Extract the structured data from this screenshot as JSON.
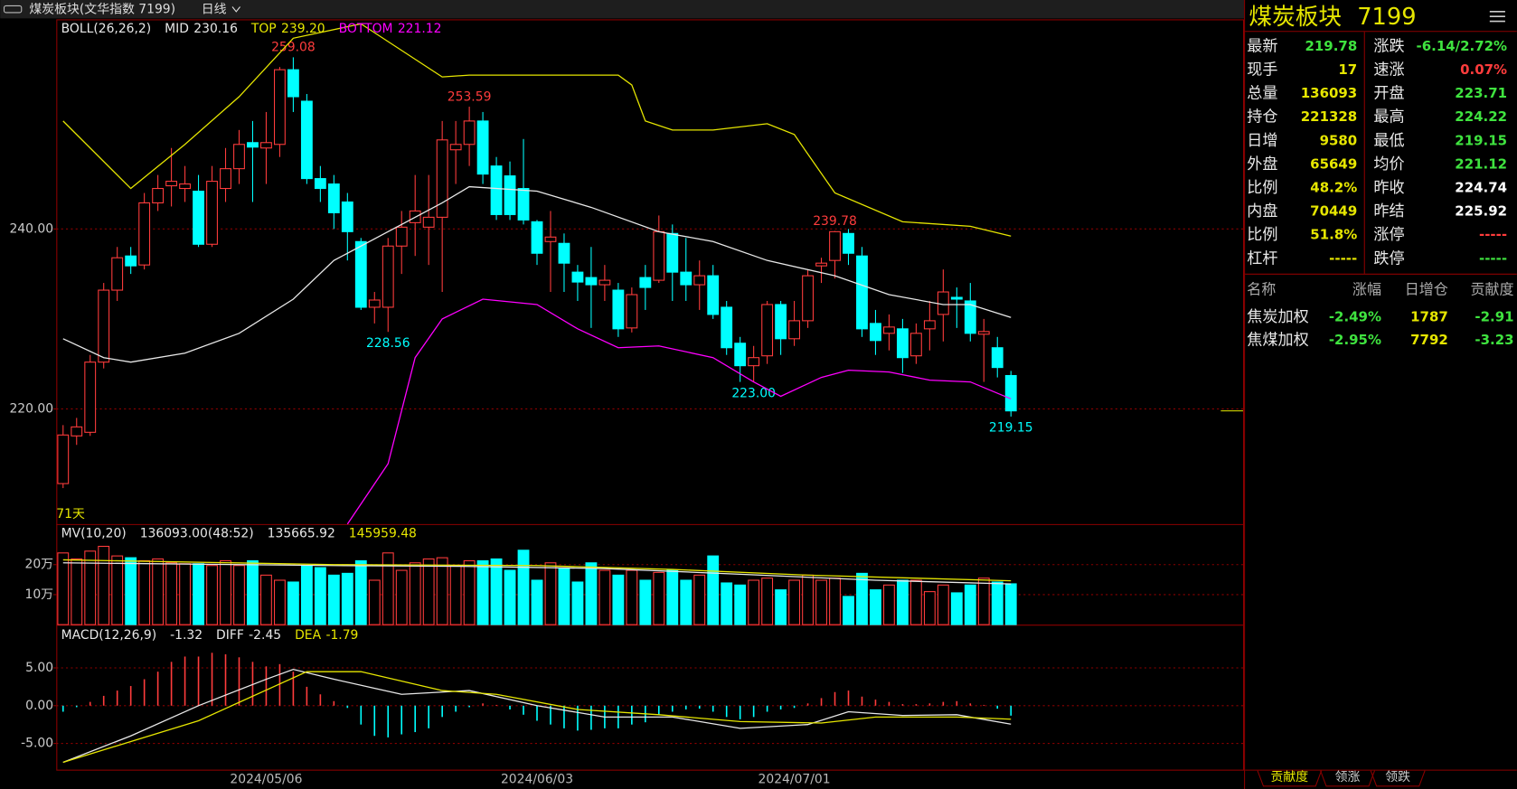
{
  "window": {
    "title": "煤炭板块(文华指数 7199)",
    "period": "日线"
  },
  "chart_data": [
    {
      "type": "candlestick",
      "indicator": "BOLL(26,26,2)",
      "day_count": "71天",
      "categories": [
        null,
        null,
        null,
        null,
        null,
        null,
        null,
        null,
        null,
        null,
        null,
        null,
        null,
        null,
        null,
        "2024/05/06",
        null,
        null,
        null,
        null,
        null,
        null,
        null,
        null,
        null,
        null,
        null,
        null,
        null,
        null,
        null,
        null,
        null,
        null,
        null,
        "2024/06/03",
        null,
        null,
        null,
        null,
        null,
        null,
        null,
        null,
        null,
        null,
        null,
        null,
        null,
        null,
        null,
        null,
        null,
        null,
        "2024/07/01",
        null,
        null,
        null,
        null,
        null,
        null,
        null,
        null,
        null,
        null,
        null,
        null,
        null,
        null,
        null,
        null
      ],
      "open": [
        211.7,
        217,
        217.4,
        225.2,
        233.2,
        237,
        236,
        242.9,
        244.8,
        244.5,
        244.2,
        238.3,
        244.5,
        246.7,
        249.6,
        249,
        249.4,
        257.7,
        254.2,
        245.6,
        245,
        243,
        238.6,
        231.3,
        231.3,
        238.1,
        240.7,
        240.2,
        241.3,
        248.8,
        249.4,
        252,
        247,
        245.9,
        244.5,
        240.8,
        238.6,
        238.4,
        235.2,
        234.6,
        233.8,
        233.2,
        229,
        234.6,
        234.3,
        239.5,
        235.2,
        233.8,
        234.8,
        231.3,
        227.3,
        224.8,
        225.9,
        231.6,
        227.8,
        229.8,
        235.9,
        236.5,
        239.5,
        237,
        229.5,
        228.4,
        228.9,
        225.9,
        228.9,
        230.5,
        232.4,
        232,
        228.3,
        226.8,
        223.71
      ],
      "high": [
        218.2,
        219,
        226,
        234,
        238,
        238,
        244,
        246,
        249,
        247,
        246,
        247,
        249,
        251,
        252,
        253,
        258,
        259.08,
        255,
        247,
        246,
        244,
        239,
        233,
        239,
        242,
        246,
        246,
        252,
        252,
        253.59,
        253,
        248,
        247.5,
        250,
        241,
        242,
        239.5,
        236,
        238,
        236,
        234,
        233.5,
        236,
        241.5,
        240.5,
        239,
        236.5,
        236,
        232,
        228,
        227,
        232,
        232,
        232,
        235.5,
        236.8,
        239.78,
        240,
        238,
        231,
        230.5,
        230,
        229.5,
        232,
        235.5,
        233.5,
        234,
        230,
        228,
        224.22
      ],
      "low": [
        211.2,
        216,
        217,
        224.5,
        232,
        235,
        235.5,
        242,
        242.5,
        243,
        238,
        238,
        243,
        245,
        243,
        245,
        248,
        253,
        245,
        243,
        240,
        236.5,
        231,
        229.5,
        228.56,
        235,
        237,
        236,
        233,
        245,
        247,
        245,
        241,
        241,
        240.5,
        236,
        233,
        233,
        232,
        229,
        232,
        228,
        228.5,
        231,
        234,
        232,
        232,
        231,
        230,
        226,
        223,
        223,
        225,
        226,
        227,
        229,
        234,
        234.5,
        236,
        228,
        226,
        226.5,
        224,
        225,
        226.5,
        227.5,
        229,
        227.5,
        223,
        223.5,
        219.15
      ],
      "close": [
        217.1,
        218,
        225.2,
        233.2,
        236.8,
        235.9,
        242.9,
        244.5,
        245.3,
        245,
        238.3,
        245.3,
        246.7,
        249.4,
        249.1,
        249.6,
        257.7,
        254.7,
        245.6,
        244.5,
        241.8,
        239.7,
        231.3,
        232.1,
        238.1,
        240.2,
        242,
        241.3,
        249.9,
        249.4,
        252,
        246.1,
        241.6,
        241.6,
        241,
        237.3,
        239.1,
        236.2,
        234.1,
        233.8,
        234.3,
        228.9,
        232.7,
        233.5,
        239.7,
        235.2,
        233.8,
        234.8,
        230.5,
        226.8,
        224.8,
        225.7,
        231.6,
        227.8,
        229.8,
        234.8,
        236.2,
        239.7,
        237.3,
        228.9,
        227.6,
        229.1,
        225.7,
        228.4,
        229.8,
        233,
        232.2,
        228.4,
        228.6,
        224.6,
        219.78
      ],
      "up_color": "#ff3c3c",
      "down_color": "#00ffff",
      "ylim": [
        207.2,
        263.3
      ],
      "yticks": [
        {
          "value": 220,
          "label": "220.00"
        },
        {
          "value": 240,
          "label": "240.00"
        }
      ],
      "grid": true,
      "annotations": [
        {
          "candle": 17,
          "at": "high",
          "text": "259.08"
        },
        {
          "candle": 30,
          "at": "high",
          "text": "253.59"
        },
        {
          "candle": 24,
          "at": "low",
          "text": "228.56"
        },
        {
          "candle": 51,
          "at": "low",
          "text": "223.00"
        },
        {
          "candle": 57,
          "at": "high",
          "text": "239.78"
        },
        {
          "candle": 70,
          "at": "low",
          "text": "219.15"
        }
      ],
      "series": [
        {
          "name": "MID",
          "readout": "230.16",
          "color": "#e8e8e8",
          "x": [
            0,
            3,
            5,
            9,
            13,
            17,
            20,
            24,
            28,
            30,
            35,
            39,
            44,
            48,
            52,
            57,
            61,
            65,
            67,
            70
          ],
          "values": [
            227.8,
            225.7,
            225.2,
            226.2,
            228.4,
            232.2,
            236.5,
            239.7,
            242.9,
            244.7,
            244.2,
            242.4,
            239.7,
            238.6,
            236.5,
            234.8,
            232.7,
            231.6,
            231.6,
            230.16
          ]
        },
        {
          "name": "TOP",
          "readout": "239.20",
          "color": "#e6e600",
          "x": [
            0,
            5,
            9,
            13,
            17,
            22,
            28,
            30,
            41,
            42,
            43,
            45,
            48,
            52,
            54,
            57,
            62,
            67,
            70
          ],
          "values": [
            252,
            244.5,
            249.4,
            254.7,
            261.2,
            262.8,
            256.9,
            257.1,
            257.1,
            256,
            252,
            251,
            251,
            251.7,
            250.5,
            244,
            240.8,
            240.3,
            239.2
          ]
        },
        {
          "name": "BOTTOM",
          "readout": "221.12",
          "color": "#ff00ff",
          "x": [
            21,
            24,
            26,
            28,
            31,
            35,
            38,
            41,
            44,
            48,
            51,
            53,
            56,
            58,
            61,
            64,
            67,
            70
          ],
          "values": [
            207.2,
            213.9,
            225.7,
            230,
            232.2,
            231.6,
            228.9,
            226.8,
            227,
            225.7,
            223,
            221.4,
            223.5,
            224.3,
            224.1,
            223.2,
            223,
            221.12
          ]
        }
      ]
    },
    {
      "type": "volume",
      "indicator": "MV(10,20)",
      "readout": "136093.00(48:52)",
      "values": [
        23.9,
        21.9,
        24.5,
        26.1,
        22.9,
        22.3,
        21.3,
        21.9,
        20.6,
        20.3,
        20.3,
        19.7,
        21.3,
        19.7,
        21.3,
        16.5,
        14.8,
        14.2,
        19.7,
        19,
        16.5,
        17.1,
        21.3,
        14.8,
        23.9,
        18.1,
        20.6,
        21.9,
        22.3,
        19.7,
        21.3,
        21.3,
        21.9,
        18.1,
        24.8,
        14.8,
        20.6,
        18.7,
        14.2,
        20.6,
        18.1,
        16.5,
        18.1,
        14.8,
        17.4,
        18.1,
        14.8,
        16.5,
        22.9,
        13.9,
        13.2,
        14.8,
        15.5,
        11.6,
        14.8,
        16.5,
        14.8,
        15.5,
        9.4,
        17.1,
        11.6,
        13.2,
        14.8,
        14.8,
        11,
        13.2,
        10.6,
        13.2,
        15.5,
        14.2,
        13.6093
      ],
      "ylim": [
        0,
        33.2
      ],
      "yticks": [
        {
          "value": 10,
          "label": "10万"
        },
        {
          "value": 20,
          "label": "20万"
        }
      ],
      "grid": true,
      "series": [
        {
          "readout": "135665.92",
          "color": "#e8e8e8",
          "x": [
            0,
            20,
            30,
            40,
            50,
            60,
            70
          ],
          "values": [
            20.6,
            19.7,
            19.4,
            18.7,
            16.8,
            14.8,
            13.57
          ]
        },
        {
          "readout": "145959.48",
          "color": "#e6e600",
          "x": [
            0,
            20,
            35,
            45,
            55,
            70
          ],
          "values": [
            21.6,
            20,
            19.7,
            18.4,
            16.5,
            14.6
          ]
        }
      ]
    },
    {
      "type": "macd",
      "indicator": "MACD(12,26,9)",
      "readout": "-1.32",
      "values": [
        -0.8,
        -0.2,
        0.5,
        1.3,
        2,
        2.6,
        3.5,
        4.5,
        5.8,
        6.5,
        6.5,
        7,
        6.8,
        6.4,
        5.8,
        5.2,
        5.5,
        4.5,
        2.5,
        1.5,
        0.6,
        -0.3,
        -2.5,
        -4,
        -4.2,
        -3.8,
        -3.5,
        -3,
        -1.5,
        -0.8,
        -0.2,
        0.3,
        0.1,
        -0.5,
        -1.2,
        -2,
        -2.5,
        -3,
        -3.3,
        -3.2,
        -3,
        -3,
        -2.5,
        -2.2,
        -1.2,
        -0.8,
        -0.5,
        -0.4,
        -0.8,
        -1.5,
        -1.8,
        -1.5,
        -0.8,
        -0.5,
        -0.3,
        0.3,
        1,
        1.8,
        2,
        1.2,
        0.8,
        0.5,
        0.2,
        0.2,
        0.3,
        0.5,
        0.6,
        0.3,
        0.1,
        -0.4,
        -1.32
      ],
      "up_color": "#ff3c3c",
      "down_color": "#00ffff",
      "ylim": [
        -8.6,
        10.6
      ],
      "yticks": [
        {
          "value": -5,
          "label": "-5.00"
        },
        {
          "value": 0,
          "label": "0.00"
        },
        {
          "value": 5,
          "label": "5.00"
        }
      ],
      "grid": true,
      "series": [
        {
          "name": "DIFF",
          "readout": "-2.45",
          "color": "#e8e8e8",
          "x": [
            0,
            5,
            10,
            15,
            17,
            20,
            25,
            30,
            35,
            40,
            45,
            50,
            55,
            58,
            62,
            66,
            70
          ],
          "values": [
            -7.5,
            -4,
            0,
            3.5,
            4.8,
            3.5,
            1.5,
            2,
            0,
            -1.5,
            -1.5,
            -3,
            -2.5,
            -0.8,
            -1.3,
            -1.2,
            -2.45
          ]
        },
        {
          "name": "DEA",
          "readout": "-1.79",
          "color": "#e6e600",
          "x": [
            0,
            10,
            18,
            22,
            28,
            32,
            38,
            44,
            50,
            56,
            60,
            66,
            70
          ],
          "values": [
            -7.5,
            -2,
            4.5,
            4.5,
            2,
            1.5,
            -0.5,
            -1.2,
            -2.1,
            -2.3,
            -1.5,
            -1.5,
            -1.79
          ]
        }
      ]
    }
  ],
  "quote": {
    "name": "煤炭板块",
    "code": "7199",
    "left": [
      {
        "label": "最新",
        "value": "219.78",
        "color": "#3fe33f"
      },
      {
        "label": "现手",
        "value": "17",
        "color": "#e6e600"
      },
      {
        "label": "总量",
        "value": "136093",
        "color": "#e6e600"
      },
      {
        "label": "持仓",
        "value": "221328",
        "color": "#e6e600"
      },
      {
        "label": "日增",
        "value": "9580",
        "color": "#e6e600"
      },
      {
        "label": "外盘",
        "value": "65649",
        "color": "#e6e600"
      },
      {
        "label": "比例",
        "value": "48.2%",
        "color": "#e6e600"
      },
      {
        "label": "内盘",
        "value": "70449",
        "color": "#e6e600"
      },
      {
        "label": "比例",
        "value": "51.8%",
        "color": "#e6e600"
      },
      {
        "label": "杠杆",
        "value": "-----",
        "color": "#e6e600"
      }
    ],
    "right": [
      {
        "label": "涨跌",
        "value": "-6.14/2.72%",
        "color": "#3fe33f"
      },
      {
        "label": "速涨",
        "value": "0.07%",
        "color": "#ff3c3c"
      },
      {
        "label": "开盘",
        "value": "223.71",
        "color": "#3fe33f"
      },
      {
        "label": "最高",
        "value": "224.22",
        "color": "#3fe33f"
      },
      {
        "label": "最低",
        "value": "219.15",
        "color": "#3fe33f"
      },
      {
        "label": "均价",
        "value": "221.12",
        "color": "#3fe33f"
      },
      {
        "label": "昨收",
        "value": "224.74",
        "color": "#ffffff"
      },
      {
        "label": "昨结",
        "value": "225.92",
        "color": "#ffffff"
      },
      {
        "label": "涨停",
        "value": "-----",
        "color": "#ff3c3c"
      },
      {
        "label": "跌停",
        "value": "-----",
        "color": "#3fe33f"
      }
    ]
  },
  "components": {
    "headers": [
      "名称",
      "涨幅",
      "日增仓",
      "贡献度"
    ],
    "rows": [
      [
        "焦炭加权",
        "-2.49%",
        "1787",
        "-2.91"
      ],
      [
        "焦煤加权",
        "-2.95%",
        "7792",
        "-3.23"
      ]
    ]
  },
  "tabs": [
    "贡献度",
    "领涨",
    "领跌"
  ]
}
